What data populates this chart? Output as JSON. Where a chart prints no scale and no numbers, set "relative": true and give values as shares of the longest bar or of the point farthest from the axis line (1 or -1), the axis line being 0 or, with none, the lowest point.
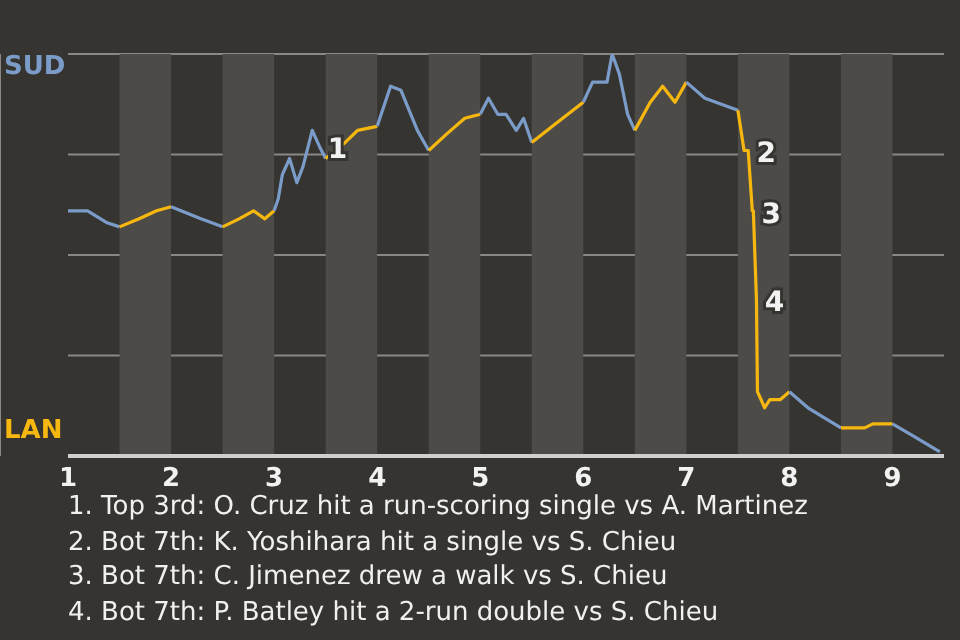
{
  "chart_data": {
    "type": "line",
    "marker": "none",
    "grid": "y",
    "relative": true,
    "xlim": [
      1,
      9.5
    ],
    "xticks": [
      1,
      2,
      3,
      4,
      5,
      6,
      7,
      8,
      9
    ],
    "series": [
      {
        "name": "SUD",
        "color": "#7b9cc8",
        "x": [
          1,
          1.19,
          1.38,
          1.5
        ],
        "values": [
          0.61,
          0.61,
          0.58,
          0.57
        ]
      },
      {
        "name": "LAN",
        "color": "#f6b70f",
        "x": [
          1.5,
          1.69,
          1.86,
          2
        ],
        "values": [
          0.57,
          0.59,
          0.61,
          0.62
        ]
      },
      {
        "color": "#7b9cc8",
        "x": [
          2,
          2.29,
          2.5
        ],
        "values": [
          0.62,
          0.59,
          0.57
        ]
      },
      {
        "color": "#f6b70f",
        "x": [
          2.5,
          2.66,
          2.8,
          2.91,
          3
        ],
        "values": [
          0.57,
          0.59,
          0.61,
          0.59,
          0.61
        ]
      },
      {
        "color": "#7b9cc8",
        "x": [
          3,
          3.04,
          3.08,
          3.15,
          3.22,
          3.28,
          3.37,
          3.44,
          3.5
        ],
        "values": [
          0.61,
          0.64,
          0.7,
          0.74,
          0.68,
          0.72,
          0.81,
          0.77,
          0.74
        ]
      },
      {
        "color": "#f6b70f",
        "x": [
          3.5,
          3.69,
          3.81,
          4
        ],
        "values": [
          0.74,
          0.78,
          0.81,
          0.82
        ]
      },
      {
        "color": "#7b9cc8",
        "x": [
          4,
          4.13,
          4.23,
          4.39,
          4.5
        ],
        "values": [
          0.82,
          0.92,
          0.91,
          0.81,
          0.76
        ]
      },
      {
        "color": "#f6b70f",
        "x": [
          4.5,
          4.67,
          4.85,
          5
        ],
        "values": [
          0.76,
          0.8,
          0.84,
          0.85
        ]
      },
      {
        "color": "#7b9cc8",
        "x": [
          5,
          5.08,
          5.17,
          5.25,
          5.35,
          5.42,
          5.5
        ],
        "values": [
          0.85,
          0.89,
          0.85,
          0.85,
          0.81,
          0.84,
          0.78
        ]
      },
      {
        "color": "#f6b70f",
        "x": [
          5.5,
          5.7,
          6
        ],
        "values": [
          0.78,
          0.82,
          0.88
        ]
      },
      {
        "color": "#7b9cc8",
        "x": [
          6,
          6.09,
          6.23,
          6.28,
          6.35,
          6.43,
          6.5
        ],
        "values": [
          0.88,
          0.93,
          0.93,
          1,
          0.95,
          0.85,
          0.81
        ]
      },
      {
        "color": "#f6b70f",
        "x": [
          6.5,
          6.65,
          6.77,
          6.89,
          7
        ],
        "values": [
          0.81,
          0.88,
          0.92,
          0.88,
          0.93
        ]
      },
      {
        "color": "#7b9cc8",
        "x": [
          7,
          7.18,
          7.5
        ],
        "values": [
          0.93,
          0.89,
          0.86
        ]
      },
      {
        "color": "#f6b70f",
        "x": [
          7.5,
          7.56,
          7.6,
          7.64,
          7.65,
          7.68,
          7.69,
          7.76,
          7.81,
          7.91,
          8
        ],
        "values": [
          0.86,
          0.76,
          0.76,
          0.61,
          0.61,
          0.39,
          0.16,
          0.12,
          0.14,
          0.14,
          0.16
        ]
      },
      {
        "color": "#7b9cc8",
        "x": [
          8,
          8.18,
          8.5
        ],
        "values": [
          0.16,
          0.12,
          0.07
        ]
      },
      {
        "color": "#f6b70f",
        "x": [
          8.5,
          8.63,
          8.73,
          8.81,
          9
        ],
        "values": [
          0.07,
          0.07,
          0.07,
          0.08,
          0.08
        ]
      },
      {
        "color": "#7b9cc8",
        "x": [
          9,
          9.2,
          9.46
        ],
        "values": [
          0.08,
          0.05,
          0.01
        ]
      }
    ],
    "bands": [
      {
        "axis": "x",
        "from": 1.5,
        "to": 2,
        "color": "#4d4b48"
      },
      {
        "axis": "x",
        "from": 2.5,
        "to": 3,
        "color": "#4d4b48"
      },
      {
        "axis": "x",
        "from": 3.5,
        "to": 4,
        "color": "#4d4b48"
      },
      {
        "axis": "x",
        "from": 4.5,
        "to": 5,
        "color": "#4d4b48"
      },
      {
        "axis": "x",
        "from": 5.5,
        "to": 6,
        "color": "#4d4b48"
      },
      {
        "axis": "x",
        "from": 6.5,
        "to": 7,
        "color": "#4d4b48"
      },
      {
        "axis": "x",
        "from": 7.5,
        "to": 8,
        "color": "#4d4b48"
      },
      {
        "axis": "x",
        "from": 8.5,
        "to": 9,
        "color": "#4d4b48"
      }
    ],
    "annotations": [
      {
        "text": "1",
        "x": 3.44,
        "y": 0.77
      },
      {
        "text": "2",
        "x": 7.6,
        "y": 0.76
      },
      {
        "text": "3",
        "x": 7.65,
        "y": 0.61
      },
      {
        "text": "4",
        "x": 7.68,
        "y": 0.39
      },
      "1. Top 3rd: O. Cruz hit a run-scoring single vs A. Martinez",
      "2. Bot 7th: K. Yoshihara hit a single vs S. Chieu",
      "3. Bot 7th: C. Jimenez drew a walk vs S. Chieu",
      "4. Bot 7th: P. Batley hit a 2-run double vs S. Chieu"
    ]
  }
}
